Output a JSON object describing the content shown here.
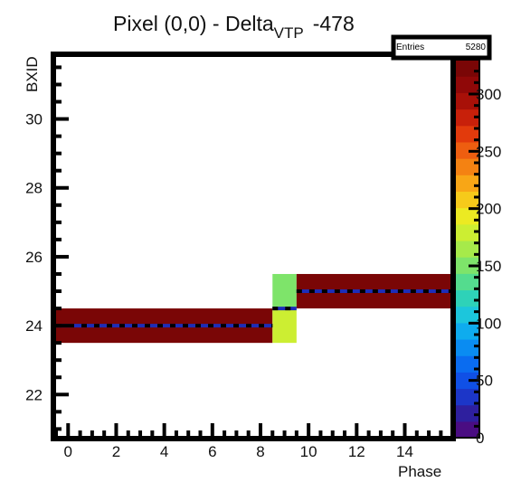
{
  "chart_data": {
    "type": "heatmap",
    "title": "Pixel (0,0) - Delta",
    "title_subscript": "VTP",
    "title_suffix": "-478",
    "xlabel": "Phase",
    "ylabel": "BXID",
    "xlim": [
      -0.5,
      15.9
    ],
    "ylim": [
      20.8,
      31.8
    ],
    "xticks": [
      0,
      2,
      4,
      6,
      8,
      10,
      12,
      14
    ],
    "yticks": [
      22,
      24,
      26,
      28,
      30
    ],
    "stats": {
      "label": "Entries",
      "value": "5280"
    },
    "zlim": [
      0,
      330
    ],
    "zticks": [
      0,
      50,
      100,
      150,
      200,
      250,
      300
    ],
    "zticklabels": [
      "0",
      "50",
      "100",
      "150",
      "200",
      "250",
      "300"
    ],
    "cells": [
      {
        "x0": -0.5,
        "x1": 8.5,
        "y0": 23.5,
        "y1": 24.5,
        "value": 330
      },
      {
        "x0": 8.5,
        "x1": 9.5,
        "y0": 23.5,
        "y1": 24.5,
        "value": 175
      },
      {
        "x0": 8.5,
        "x1": 9.5,
        "y0": 24.5,
        "y1": 25.5,
        "value": 155
      },
      {
        "x0": 9.5,
        "x1": 15.9,
        "y0": 24.5,
        "y1": 25.5,
        "value": 330
      }
    ],
    "profile": [
      {
        "x0": -0.5,
        "x1": 8.5,
        "y": 24.0
      },
      {
        "x0": 8.5,
        "x1": 9.5,
        "y": 24.5
      },
      {
        "x0": 9.5,
        "x1": 15.9,
        "y": 25.0
      }
    ],
    "palette": [
      "#4a0d82",
      "#2e1f9e",
      "#1c36c8",
      "#1050e6",
      "#0a6cf0",
      "#0a8cf2",
      "#0eacee",
      "#1cc6dc",
      "#2ed2b8",
      "#54dc8e",
      "#7ee46a",
      "#a6ea4a",
      "#ccee32",
      "#ecea22",
      "#f6ca1a",
      "#f8a616",
      "#f48212",
      "#ee5e10",
      "#e23a0c",
      "#c8200a",
      "#a81008",
      "#900808",
      "#7a0606"
    ]
  }
}
